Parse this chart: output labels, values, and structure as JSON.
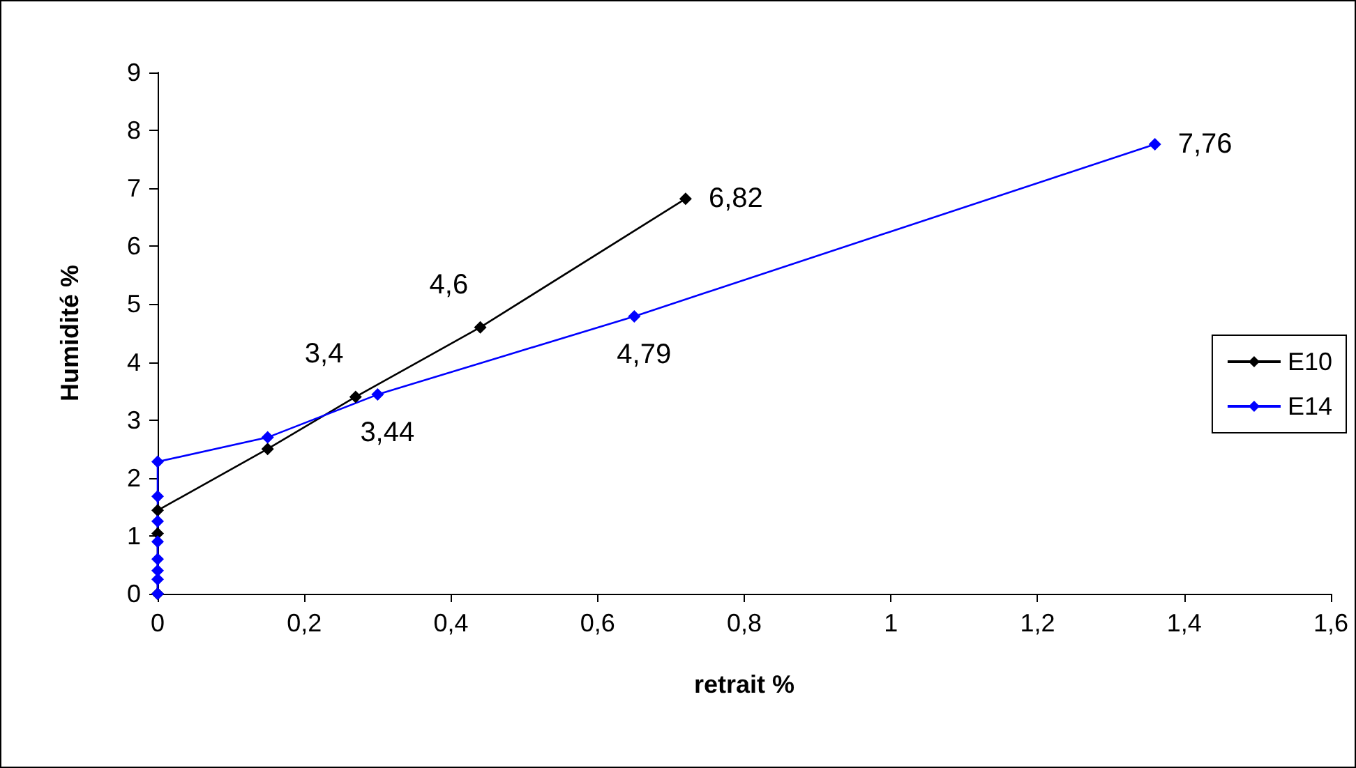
{
  "chart_data": {
    "type": "line",
    "xlabel": "retrait %",
    "ylabel": "Humidité %",
    "xlim": [
      0,
      1.6
    ],
    "xticks": [
      {
        "value": 0,
        "label": "0"
      },
      {
        "value": 0.2,
        "label": "0,2"
      },
      {
        "value": 0.4,
        "label": "0,4"
      },
      {
        "value": 0.6,
        "label": "0,6"
      },
      {
        "value": 0.8,
        "label": "0,8"
      },
      {
        "value": 1,
        "label": "1"
      },
      {
        "value": 1.2,
        "label": "1,2"
      },
      {
        "value": 1.4,
        "label": "1,4"
      },
      {
        "value": 1.6,
        "label": "1,6"
      }
    ],
    "ylim": [
      0,
      9
    ],
    "yticks": [
      0,
      1,
      2,
      3,
      4,
      5,
      6,
      7,
      8,
      9
    ],
    "grid": false,
    "legend": "right",
    "marker": "diamond",
    "line_style": "solid",
    "series": [
      {
        "name": "E10",
        "color": "#000000",
        "x": [
          0,
          0,
          0,
          0.15,
          0.27,
          0.44,
          0.72
        ],
        "values": [
          0,
          1.04,
          1.44,
          2.5,
          3.4,
          4.6,
          6.82
        ],
        "value_labels": [
          null,
          null,
          null,
          null,
          "3,4",
          "4,6",
          "6,82"
        ]
      },
      {
        "name": "E14",
        "color": "#0000ff",
        "x": [
          0,
          0,
          0,
          0,
          0,
          0,
          0,
          0,
          0.15,
          0.3,
          0.65,
          1.36
        ],
        "values": [
          0,
          0.25,
          0.4,
          0.6,
          0.9,
          1.25,
          1.68,
          2.28,
          2.7,
          3.44,
          4.79,
          7.76
        ],
        "value_labels": [
          null,
          null,
          null,
          null,
          null,
          null,
          null,
          null,
          null,
          "3,44",
          "4,79",
          "7,76"
        ]
      }
    ]
  }
}
